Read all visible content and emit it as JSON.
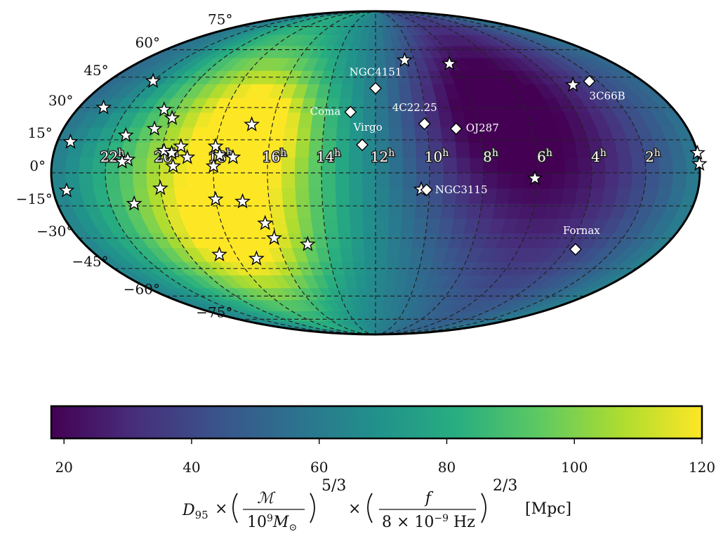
{
  "chart_data": {
    "type": "heatmap",
    "projection": "mollweide",
    "colormap": "viridis",
    "dec_tick_labels": [
      "75°",
      "60°",
      "45°",
      "30°",
      "15°",
      "0°",
      "−15°",
      "−30°",
      "−45°",
      "−60°",
      "−75°"
    ],
    "dec_ticks_deg": [
      75,
      60,
      45,
      30,
      15,
      0,
      -15,
      -30,
      -45,
      -60,
      -75
    ],
    "ra_tick_labels": [
      "22",
      "20",
      "18",
      "16",
      "14",
      "12",
      "10",
      "8",
      "6",
      "4",
      "2"
    ],
    "ra_tick_hours": [
      22,
      20,
      18,
      16,
      14,
      12,
      10,
      8,
      6,
      4,
      2
    ],
    "ra_superscript": "h",
    "colorbar": {
      "min": 18,
      "max": 120,
      "tick_values": [
        20,
        40,
        60,
        80,
        100,
        120
      ],
      "tick_labels": [
        "20",
        "40",
        "60",
        "80",
        "100",
        "120"
      ],
      "label_parts": {
        "d": "D",
        "d_sub": "95",
        "times": "×",
        "chirp_mass": "ℳ",
        "mass_unit_base": "10",
        "mass_unit_exp": "9",
        "mass_unit_sym": "M",
        "mass_unit_sub": "⊙",
        "exp1": "5/3",
        "freq": "f",
        "freq_denom": "8 × 10",
        "freq_denom_exp": "−9",
        "freq_unit": " Hz",
        "exp2": "2/3",
        "unit": "[Mpc]"
      }
    },
    "sky_map_field": {
      "base": 62,
      "blobs": [
        {
          "ra_h": 18.0,
          "dec": 0,
          "amplitude": 52,
          "width_h": 3.2,
          "width_dec": 55
        },
        {
          "ra_h": 16.5,
          "dec": 22,
          "amplitude": 30,
          "width_h": 1.5,
          "width_dec": 18
        },
        {
          "ra_h": 17.5,
          "dec": -30,
          "amplitude": 25,
          "width_h": 2.0,
          "width_dec": 20
        },
        {
          "ra_h": 5.5,
          "dec": 15,
          "amplitude": -42,
          "width_h": 3.2,
          "width_dec": 60
        },
        {
          "ra_h": 8.5,
          "dec": 35,
          "amplitude": -20,
          "width_h": 2.0,
          "width_dec": 30
        },
        {
          "ra_h": 22.5,
          "dec": 45,
          "amplitude": -12,
          "width_h": 1.5,
          "width_dec": 20
        }
      ]
    },
    "named_sources": [
      {
        "name": "NGC4151",
        "ra_h": 12.0,
        "dec": 39.4
      },
      {
        "name": "Coma",
        "ra_h": 13.0,
        "dec": 27.9
      },
      {
        "name": "Virgo",
        "ra_h": 12.5,
        "dec": 12.7
      },
      {
        "name": "4C22.25",
        "ra_h": 10.1,
        "dec": 22.4
      },
      {
        "name": "OJ287",
        "ra_h": 8.9,
        "dec": 20.1
      },
      {
        "name": "3C66B",
        "ra_h": 2.4,
        "dec": 42.9
      },
      {
        "name": "NGC3115",
        "ra_h": 10.1,
        "dec": -7.7
      },
      {
        "name": "Fornax",
        "ra_h": 3.6,
        "dec": -35.4
      }
    ],
    "star_sources": [
      {
        "ra_h": 10.5,
        "dec": 54
      },
      {
        "ra_h": 8.3,
        "dec": 52
      },
      {
        "ra_h": 3.3,
        "dec": 41
      },
      {
        "ra_h": 22.0,
        "dec": 43
      },
      {
        "ra_h": 23.0,
        "dec": 30
      },
      {
        "ra_h": 23.5,
        "dec": 14
      },
      {
        "ra_h": 21.5,
        "dec": 17
      },
      {
        "ra_h": 20.5,
        "dec": 29
      },
      {
        "ra_h": 20.0,
        "dec": 25
      },
      {
        "ra_h": 20.5,
        "dec": 20
      },
      {
        "ra_h": 19.3,
        "dec": 12
      },
      {
        "ra_h": 19.9,
        "dec": 10
      },
      {
        "ra_h": 19.6,
        "dec": 9
      },
      {
        "ra_h": 19.0,
        "dec": 7
      },
      {
        "ra_h": 18.0,
        "dec": 12
      },
      {
        "ra_h": 17.8,
        "dec": 8
      },
      {
        "ra_h": 16.8,
        "dec": 22
      },
      {
        "ra_h": 19.5,
        "dec": 3
      },
      {
        "ra_h": 17.3,
        "dec": 7
      },
      {
        "ra_h": 18.0,
        "dec": 3
      },
      {
        "ra_h": 21.2,
        "dec": 6
      },
      {
        "ra_h": 21.4,
        "dec": 5
      },
      {
        "ra_h": 23.5,
        "dec": -8
      },
      {
        "ra_h": 20.0,
        "dec": -7
      },
      {
        "ra_h": 21.1,
        "dec": -14
      },
      {
        "ra_h": 18.0,
        "dec": -12
      },
      {
        "ra_h": 17.0,
        "dec": -13
      },
      {
        "ra_h": 16.3,
        "dec": -23
      },
      {
        "ra_h": 16.1,
        "dec": -30
      },
      {
        "ra_h": 14.8,
        "dec": -33
      },
      {
        "ra_h": 18.7,
        "dec": -38
      },
      {
        "ra_h": 17.2,
        "dec": -40
      },
      {
        "ra_h": 10.3,
        "dec": -7.5
      },
      {
        "ra_h": 6.1,
        "dec": -2.5
      },
      {
        "ra_h": 0.0,
        "dec": 9
      },
      {
        "ra_h": 0.0,
        "dec": 4
      }
    ]
  }
}
